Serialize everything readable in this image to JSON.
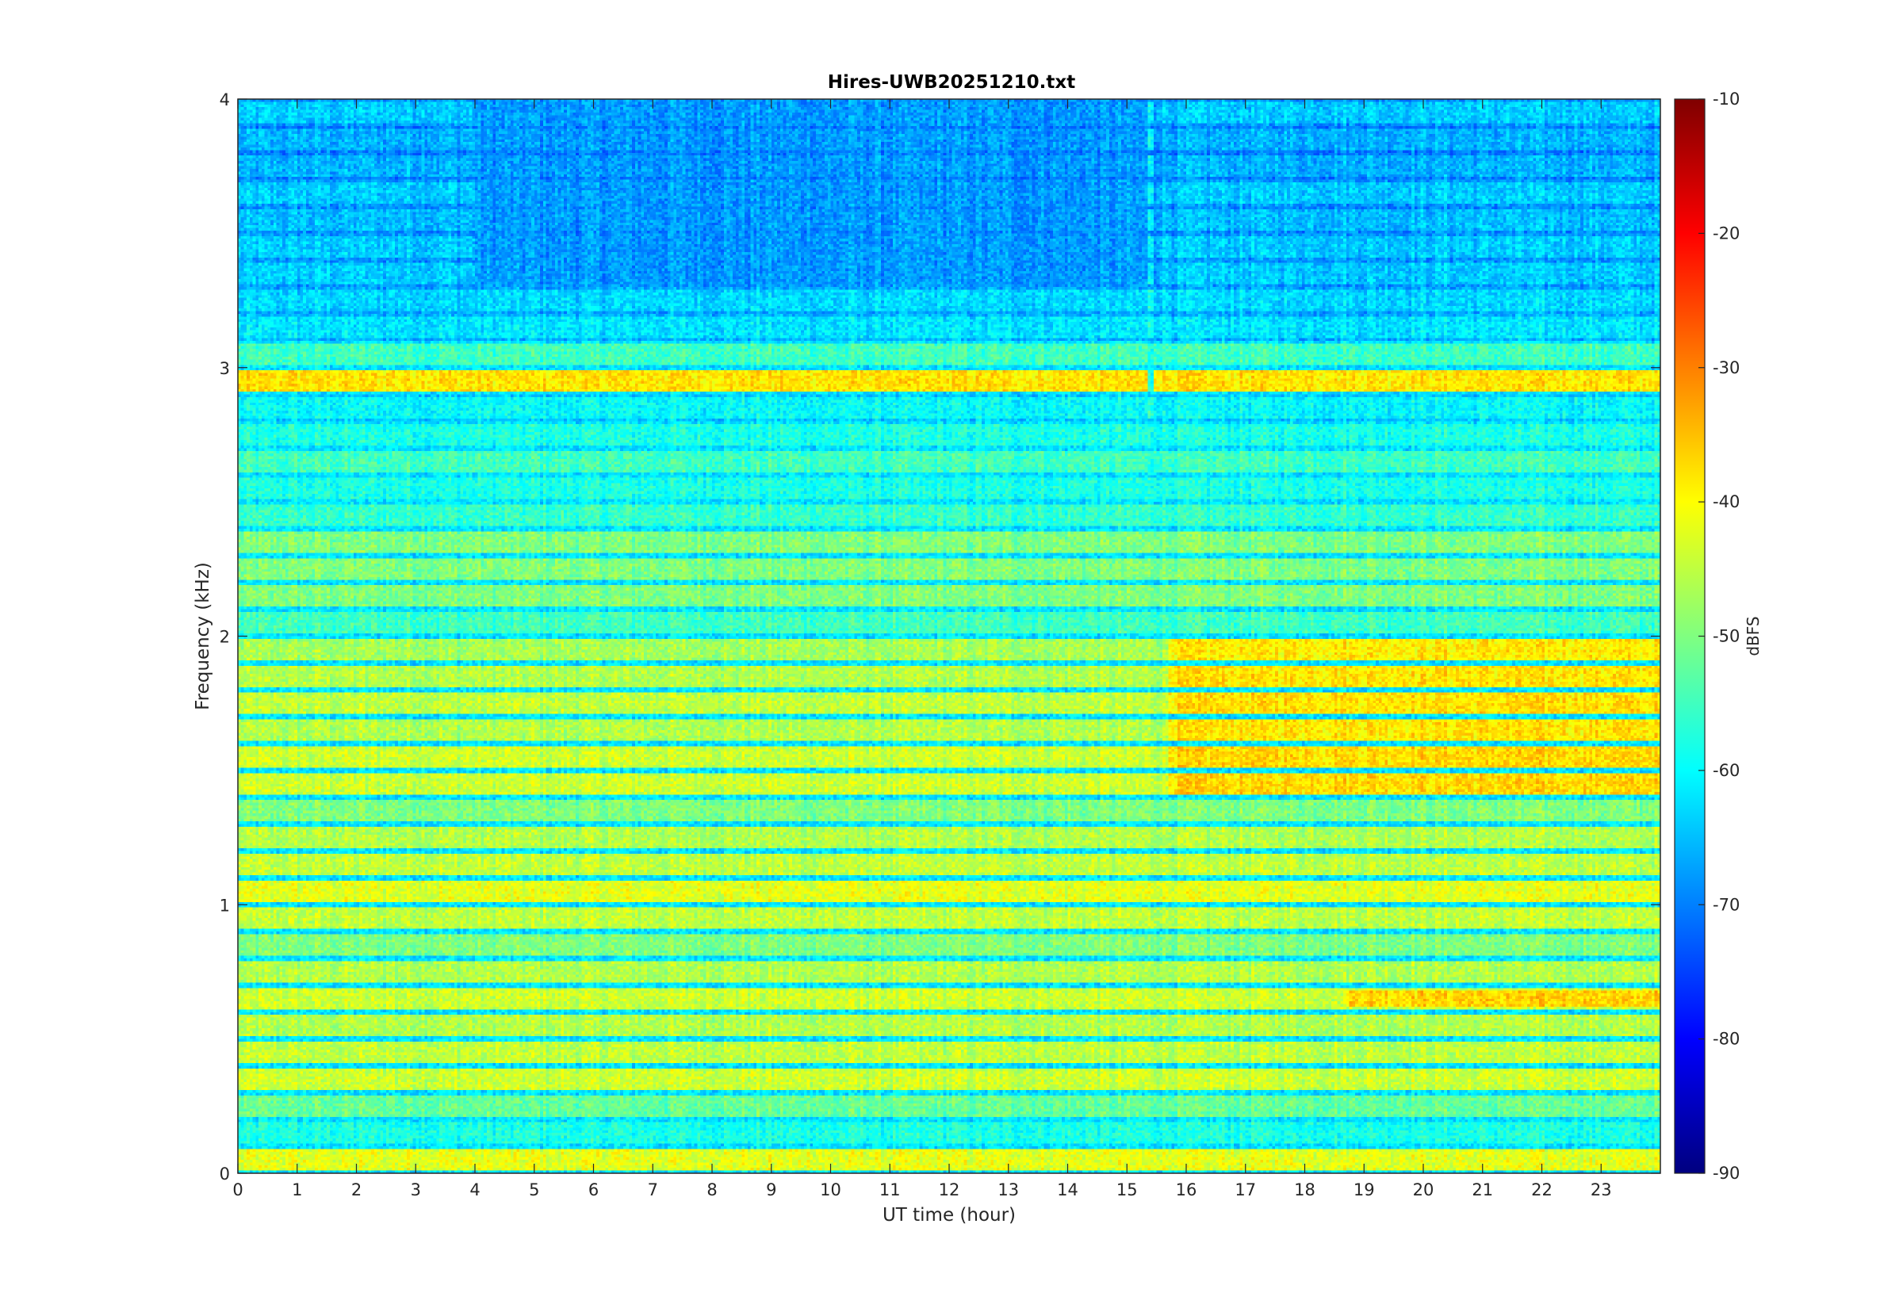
{
  "chart_data": {
    "type": "heatmap",
    "title": "Hires-UWB20251210.txt",
    "xlabel": "UT time (hour)",
    "ylabel": "Frequency (kHz)",
    "colorbar_label": "dBFS",
    "colormap": "jet",
    "xlim": [
      0,
      24
    ],
    "ylim": [
      0,
      4
    ],
    "clim": [
      -90,
      -10
    ],
    "x_ticks": [
      "0",
      "1",
      "2",
      "3",
      "4",
      "5",
      "6",
      "7",
      "8",
      "9",
      "10",
      "11",
      "12",
      "13",
      "14",
      "15",
      "16",
      "17",
      "18",
      "19",
      "20",
      "21",
      "22",
      "23"
    ],
    "y_ticks": [
      "0",
      "1",
      "2",
      "3",
      "4"
    ],
    "colorbar_ticks": [
      "-90",
      "-80",
      "-70",
      "-60",
      "-50",
      "-40",
      "-30",
      "-20",
      "-10"
    ],
    "freq_bands_khz": [
      {
        "f": 0.05,
        "level": -42
      },
      {
        "f": 0.15,
        "level": -58
      },
      {
        "f": 0.25,
        "level": -52
      },
      {
        "f": 0.35,
        "level": -44
      },
      {
        "f": 0.45,
        "level": -45
      },
      {
        "f": 0.55,
        "level": -46
      },
      {
        "f": 0.65,
        "level": -44
      },
      {
        "f": 0.75,
        "level": -46
      },
      {
        "f": 0.85,
        "level": -50
      },
      {
        "f": 0.95,
        "level": -45
      },
      {
        "f": 1.05,
        "level": -42
      },
      {
        "f": 1.15,
        "level": -45
      },
      {
        "f": 1.25,
        "level": -46
      },
      {
        "f": 1.35,
        "level": -50
      },
      {
        "f": 1.45,
        "level": -44
      },
      {
        "f": 1.55,
        "level": -44
      },
      {
        "f": 1.65,
        "level": -46
      },
      {
        "f": 1.75,
        "level": -45
      },
      {
        "f": 1.85,
        "level": -46
      },
      {
        "f": 1.95,
        "level": -47
      },
      {
        "f": 2.05,
        "level": -55
      },
      {
        "f": 2.15,
        "level": -50
      },
      {
        "f": 2.25,
        "level": -50
      },
      {
        "f": 2.35,
        "level": -50
      },
      {
        "f": 2.45,
        "level": -56
      },
      {
        "f": 2.55,
        "level": -58
      },
      {
        "f": 2.65,
        "level": -55
      },
      {
        "f": 2.75,
        "level": -58
      },
      {
        "f": 2.85,
        "level": -60
      },
      {
        "f": 2.95,
        "level": -38
      },
      {
        "f": 3.05,
        "level": -55
      },
      {
        "f": 3.15,
        "level": -62
      },
      {
        "f": 3.25,
        "level": -63
      },
      {
        "f": 3.35,
        "level": -64
      },
      {
        "f": 3.45,
        "level": -64
      },
      {
        "f": 3.55,
        "level": -65
      },
      {
        "f": 3.65,
        "level": -64
      },
      {
        "f": 3.75,
        "level": -66
      },
      {
        "f": 3.85,
        "level": -66
      },
      {
        "f": 3.95,
        "level": -64
      }
    ],
    "features": [
      {
        "note": "strong harmonic lines 1.4-2.0 kHz after 15.7 h",
        "t_start": 15.7,
        "t_end": 24,
        "f_min": 1.4,
        "f_max": 2.0,
        "level": -36
      },
      {
        "note": "enhanced band near 0.65 kHz after 18.7 h",
        "t_start": 18.7,
        "t_end": 24,
        "f_min": 0.62,
        "f_max": 0.68,
        "level": -35
      },
      {
        "note": "quieter upper band 3.3-4 kHz around 4-15.5 h",
        "t_start": 4,
        "t_end": 15.5,
        "f_min": 3.3,
        "f_max": 4.0,
        "level": -68
      },
      {
        "note": "vertical line near 15.4 h",
        "t_start": 15.35,
        "t_end": 15.45,
        "f_min": 2.6,
        "f_max": 4.0,
        "level": -58
      }
    ]
  }
}
